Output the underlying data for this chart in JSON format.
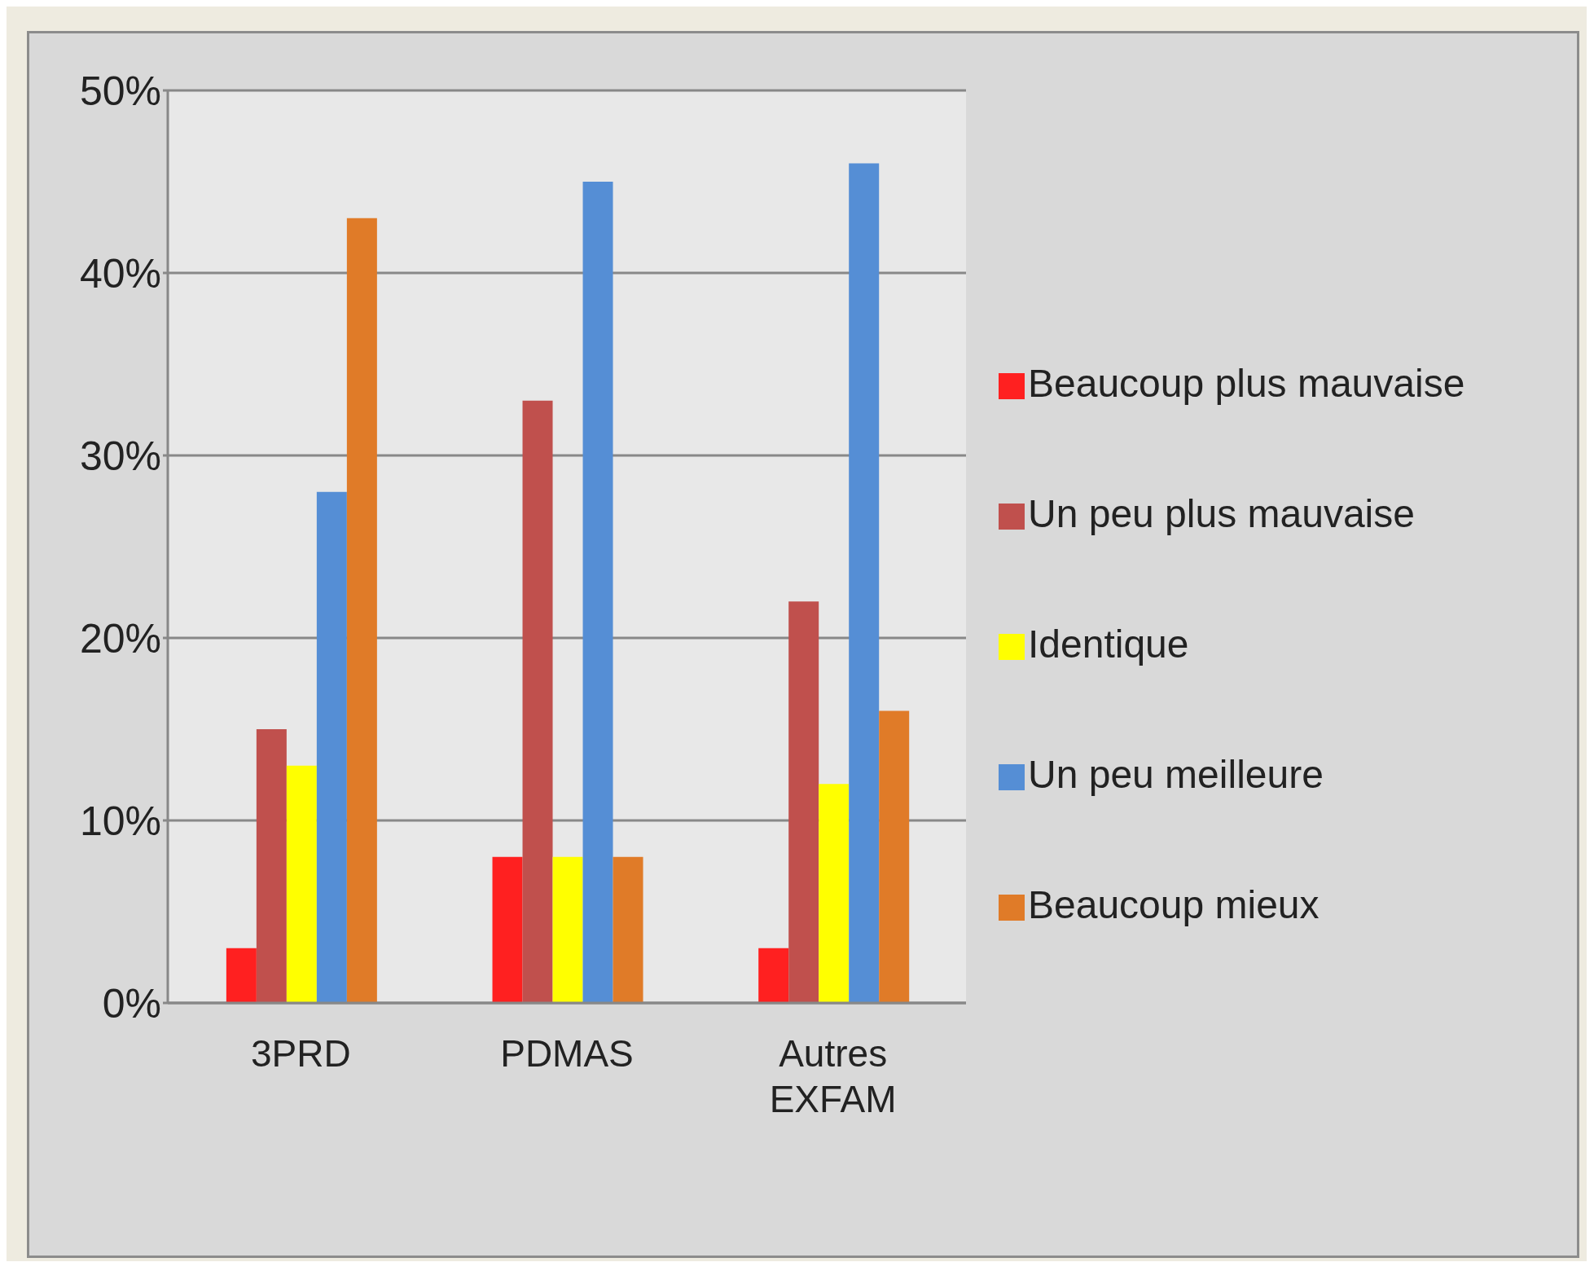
{
  "chart_data": {
    "type": "bar",
    "categories": [
      "3PRD",
      "PDMAS",
      "Autres EXFAM"
    ],
    "series": [
      {
        "name": "Beaucoup plus mauvaise",
        "color": "#ff2020",
        "values": [
          3,
          8,
          3
        ]
      },
      {
        "name": "Un peu plus mauvaise",
        "color": "#c0504d",
        "values": [
          15,
          33,
          22
        ]
      },
      {
        "name": "Identique",
        "color": "#ffff00",
        "values": [
          13,
          8,
          12
        ]
      },
      {
        "name": "Un peu meilleure",
        "color": "#558ed5",
        "values": [
          28,
          45,
          46
        ]
      },
      {
        "name": "Beaucoup mieux",
        "color": "#e07b28",
        "values": [
          43,
          8,
          16
        ]
      }
    ],
    "ylim": [
      0,
      50
    ],
    "yticks": [
      {
        "value": 0,
        "label": "0%"
      },
      {
        "value": 10,
        "label": "10%"
      },
      {
        "value": 20,
        "label": "20%"
      },
      {
        "value": 30,
        "label": "30%"
      },
      {
        "value": 40,
        "label": "40%"
      },
      {
        "value": 50,
        "label": "50%"
      }
    ],
    "grid": "y",
    "legend": "right"
  }
}
